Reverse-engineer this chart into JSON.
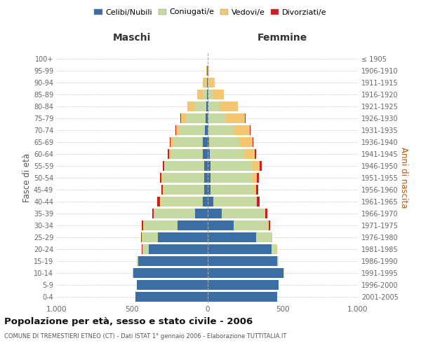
{
  "age_groups": [
    "0-4",
    "5-9",
    "10-14",
    "15-19",
    "20-24",
    "25-29",
    "30-34",
    "35-39",
    "40-44",
    "45-49",
    "50-54",
    "55-59",
    "60-64",
    "65-69",
    "70-74",
    "75-79",
    "80-84",
    "85-89",
    "90-94",
    "95-99",
    "100+"
  ],
  "birth_years": [
    "2001-2005",
    "1996-2000",
    "1991-1995",
    "1986-1990",
    "1981-1985",
    "1976-1980",
    "1971-1975",
    "1966-1970",
    "1961-1965",
    "1956-1960",
    "1951-1955",
    "1946-1950",
    "1941-1945",
    "1936-1940",
    "1931-1935",
    "1926-1930",
    "1921-1925",
    "1916-1920",
    "1911-1915",
    "1906-1910",
    "≤ 1905"
  ],
  "males_celibi": [
    480,
    470,
    490,
    460,
    390,
    330,
    200,
    80,
    30,
    20,
    20,
    20,
    30,
    28,
    18,
    10,
    5,
    3,
    2,
    1,
    0
  ],
  "males_coniugati": [
    0,
    0,
    5,
    10,
    35,
    100,
    220,
    270,
    280,
    270,
    280,
    265,
    212,
    198,
    172,
    128,
    78,
    28,
    8,
    2,
    0
  ],
  "males_vedovi": [
    0,
    0,
    0,
    0,
    5,
    5,
    5,
    5,
    5,
    5,
    5,
    4,
    13,
    18,
    18,
    38,
    48,
    38,
    18,
    4,
    0
  ],
  "males_divorziati": [
    0,
    0,
    0,
    0,
    5,
    5,
    10,
    10,
    18,
    10,
    10,
    8,
    8,
    4,
    4,
    4,
    0,
    0,
    0,
    0,
    0
  ],
  "females_nubili": [
    465,
    475,
    505,
    465,
    425,
    325,
    175,
    95,
    38,
    22,
    20,
    20,
    18,
    12,
    8,
    5,
    5,
    5,
    2,
    1,
    0
  ],
  "females_coniugate": [
    0,
    0,
    4,
    8,
    33,
    100,
    228,
    285,
    285,
    282,
    282,
    278,
    228,
    200,
    168,
    118,
    78,
    28,
    8,
    2,
    0
  ],
  "females_vedove": [
    0,
    0,
    0,
    0,
    4,
    4,
    4,
    4,
    8,
    18,
    28,
    48,
    68,
    88,
    108,
    128,
    118,
    78,
    38,
    8,
    0
  ],
  "females_divorziate": [
    0,
    0,
    0,
    0,
    0,
    4,
    8,
    13,
    18,
    18,
    13,
    13,
    8,
    4,
    4,
    4,
    4,
    0,
    0,
    0,
    0
  ],
  "color_celibi": "#3a6ea5",
  "color_coniugati": "#c5d9a0",
  "color_vedovi": "#f5c672",
  "color_divorziati": "#cc1f1f",
  "legend_labels": [
    "Celibi/Nubili",
    "Coniugati/e",
    "Vedovi/e",
    "Divorziati/e"
  ],
  "title": "Popolazione per età, sesso e stato civile - 2006",
  "subtitle": "COMUNE DI TREMESTIERI ETNEO (CT) - Dati ISTAT 1° gennaio 2006 - Elaborazione TUTTITALIA.IT",
  "label_maschi": "Maschi",
  "label_femmine": "Femmine",
  "ylabel_left": "Fasce di età",
  "ylabel_right": "Anni di nascita",
  "xlim": 1000
}
